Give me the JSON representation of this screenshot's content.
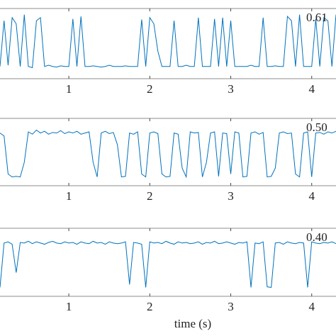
{
  "chart_data": {
    "type": "line",
    "xlabel": "time (s)",
    "x": [
      0.15,
      0.2,
      0.25,
      0.3,
      0.35,
      0.4,
      0.45,
      0.5,
      0.55,
      0.6,
      0.65,
      0.7,
      0.75,
      0.8,
      0.85,
      0.9,
      0.95,
      1,
      1.05,
      1.1,
      1.15,
      1.2,
      1.25,
      1.3,
      1.35,
      1.4,
      1.45,
      1.5,
      1.55,
      1.6,
      1.65,
      1.7,
      1.75,
      1.8,
      1.85,
      1.9,
      1.95,
      2,
      2.05,
      2.1,
      2.15,
      2.2,
      2.25,
      2.3,
      2.35,
      2.4,
      2.45,
      2.5,
      2.55,
      2.6,
      2.65,
      2.7,
      2.75,
      2.8,
      2.85,
      2.9,
      2.95,
      3,
      3.05,
      3.1,
      3.15,
      3.2,
      3.25,
      3.3,
      3.35,
      3.4,
      3.45,
      3.5,
      3.55,
      3.6,
      3.65,
      3.7,
      3.75,
      3.8,
      3.85,
      3.9,
      3.95,
      4,
      4.05,
      4.1,
      4.15,
      4.2,
      4.25,
      4.3
    ],
    "series": [
      {
        "name": "0.61",
        "color": "#0072bd",
        "values": [
          0.1,
          0.85,
          0.12,
          0.9,
          0.8,
          0.1,
          0.95,
          0.1,
          0.08,
          0.85,
          0.9,
          0.1,
          0.12,
          0.1,
          0.09,
          0.11,
          0.1,
          0.1,
          0.88,
          0.1,
          0.92,
          0.1,
          0.1,
          0.11,
          0.1,
          0.09,
          0.1,
          0.12,
          0.1,
          0.1,
          0.1,
          0.11,
          0.1,
          0.1,
          0.1,
          0.87,
          0.1,
          0.9,
          0.8,
          0.35,
          0.1,
          0.1,
          0.1,
          0.85,
          0.1,
          0.1,
          0.12,
          0.1,
          0.1,
          0.9,
          0.1,
          0.1,
          0.1,
          0.88,
          0.1,
          0.9,
          0.1,
          0.85,
          0.1,
          0.1,
          0.1,
          0.1,
          0.12,
          0.1,
          0.1,
          0.9,
          0.1,
          0.1,
          0.11,
          0.1,
          0.1,
          0.92,
          0.85,
          0.1,
          0.95,
          0.1,
          0.1,
          0.1,
          0.88,
          0.1,
          0.9,
          0.85,
          0.1,
          0.95
        ]
      },
      {
        "name": "0.50",
        "color": "#0072bd",
        "values": [
          0.8,
          0.75,
          0.1,
          0.05,
          0.06,
          0.05,
          0.3,
          0.82,
          0.78,
          0.85,
          0.8,
          0.83,
          0.78,
          0.81,
          0.8,
          0.84,
          0.79,
          0.82,
          0.8,
          0.83,
          0.78,
          0.8,
          0.82,
          0.3,
          0.05,
          0.8,
          0.83,
          0.79,
          0.81,
          0.6,
          0.05,
          0.06,
          0.8,
          0.78,
          0.82,
          0.1,
          0.05,
          0.8,
          0.82,
          0.79,
          0.1,
          0.05,
          0.06,
          0.8,
          0.78,
          0.2,
          0.05,
          0.82,
          0.8,
          0.81,
          0.05,
          0.3,
          0.8,
          0.82,
          0.06,
          0.8,
          0.79,
          0.1,
          0.82,
          0.8,
          0.05,
          0.06,
          0.8,
          0.82,
          0.78,
          0.81,
          0.05,
          0.06,
          0.2,
          0.8,
          0.82,
          0.79,
          0.8,
          0.1,
          0.05,
          0.8,
          0.82,
          0.05,
          0.8,
          0.81,
          0.78,
          0.82,
          0.8,
          0.83
        ]
      },
      {
        "name": "0.40",
        "color": "#0072bd",
        "values": [
          0.05,
          0.8,
          0.82,
          0.78,
          0.3,
          0.81,
          0.8,
          0.83,
          0.79,
          0.82,
          0.8,
          0.78,
          0.81,
          0.83,
          0.8,
          0.79,
          0.82,
          0.8,
          0.81,
          0.78,
          0.82,
          0.8,
          0.79,
          0.83,
          0.8,
          0.81,
          0.78,
          0.82,
          0.8,
          0.79,
          0.8,
          0.82,
          0.1,
          0.81,
          0.8,
          0.78,
          0.05,
          0.82,
          0.8,
          0.81,
          0.79,
          0.83,
          0.8,
          0.78,
          0.82,
          0.8,
          0.81,
          0.79,
          0.8,
          0.82,
          0.78,
          0.81,
          0.8,
          0.83,
          0.79,
          0.8,
          0.82,
          0.8,
          0.78,
          0.81,
          0.8,
          0.82,
          0.05,
          0.8,
          0.79,
          0.82,
          0.06,
          0.05,
          0.8,
          0.81,
          0.78,
          0.82,
          0.8,
          0.79,
          0.81,
          0.8,
          0.05,
          0.82,
          0.8,
          0.79,
          0.81,
          0.8,
          0.82,
          0.79
        ]
      }
    ],
    "xlim": [
      0.15,
      4.3
    ],
    "xticks": [
      1,
      2,
      3,
      4
    ],
    "ylim": [
      -0.1,
      1.05
    ]
  }
}
